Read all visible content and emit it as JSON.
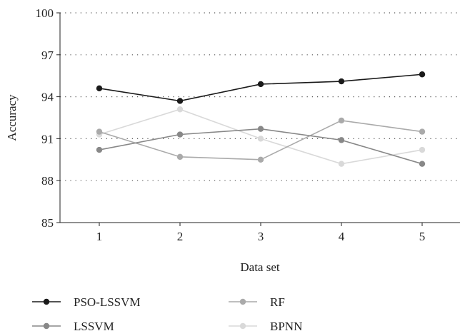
{
  "chart_data": {
    "type": "line",
    "title": "",
    "xlabel": "Data set",
    "ylabel": "Accuracy",
    "x": [
      1,
      2,
      3,
      4,
      5
    ],
    "x_tick_labels": [
      "1",
      "2",
      "3",
      "4",
      "5"
    ],
    "ylim": [
      85,
      100
    ],
    "y_ticks": [
      85,
      88,
      91,
      94,
      97,
      100
    ],
    "grid": "horizontal dotted",
    "legend_position": "bottom",
    "series": [
      {
        "name": "PSO-LSSVM",
        "color": "#1a1a1a",
        "values": [
          94.6,
          93.7,
          94.9,
          95.1,
          95.6
        ]
      },
      {
        "name": "LSSVM",
        "color": "#888888",
        "values": [
          90.2,
          91.3,
          91.7,
          90.9,
          89.2
        ]
      },
      {
        "name": "RF",
        "color": "#aaaaaa",
        "values": [
          91.5,
          89.7,
          89.5,
          92.3,
          91.5
        ]
      },
      {
        "name": "BPNN",
        "color": "#d9d9d9",
        "values": [
          91.3,
          93.1,
          91.0,
          89.2,
          90.2
        ]
      }
    ]
  }
}
